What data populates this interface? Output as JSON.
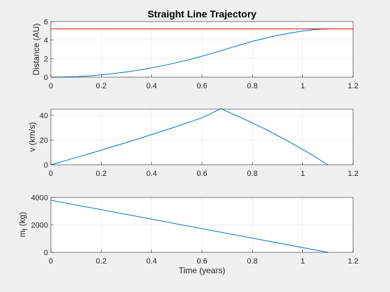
{
  "chart_data": [
    {
      "type": "line",
      "title": "Straight Line Trajectory",
      "xlabel": "",
      "ylabel": "Distance (AU)",
      "xlim": [
        0,
        1.2
      ],
      "ylim": [
        0,
        6
      ],
      "xticks": [
        "0",
        "0.2",
        "0.4",
        "0.6",
        "0.8",
        "1",
        "1.2"
      ],
      "yticks": [
        "0",
        "2",
        "4",
        "6"
      ],
      "grid": true,
      "series": [
        {
          "color": "#0072BD",
          "x": [
            0,
            0.05,
            0.1,
            0.15,
            0.2,
            0.25,
            0.3,
            0.35,
            0.4,
            0.45,
            0.5,
            0.55,
            0.6,
            0.65,
            0.675,
            0.7,
            0.75,
            0.8,
            0.85,
            0.9,
            0.95,
            1.0,
            1.05,
            1.1
          ],
          "y": [
            0,
            0.02,
            0.06,
            0.14,
            0.25,
            0.39,
            0.56,
            0.77,
            1.0,
            1.27,
            1.57,
            1.9,
            2.26,
            2.65,
            2.86,
            3.06,
            3.46,
            3.86,
            4.2,
            4.5,
            4.76,
            4.98,
            5.14,
            5.2
          ]
        },
        {
          "color": "#FF0000",
          "x": [
            0,
            1.2
          ],
          "y": [
            5.2,
            5.2
          ]
        }
      ]
    },
    {
      "type": "line",
      "title": "",
      "xlabel": "",
      "ylabel": "v (km/s)",
      "xlim": [
        0,
        1.2
      ],
      "ylim": [
        0,
        45
      ],
      "xticks": [
        "0",
        "0.2",
        "0.4",
        "0.6",
        "0.8",
        "1",
        "1.2"
      ],
      "yticks": [
        "0",
        "20",
        "40"
      ],
      "grid": true,
      "series": [
        {
          "color": "#0072BD",
          "x": [
            0,
            0.1,
            0.2,
            0.3,
            0.4,
            0.5,
            0.6,
            0.675,
            0.75,
            0.85,
            0.95,
            1.03,
            1.1
          ],
          "y": [
            0,
            5.8,
            11.8,
            18.0,
            24.4,
            31.0,
            38.0,
            45.4,
            38.6,
            29.0,
            18.2,
            8.8,
            0
          ]
        }
      ]
    },
    {
      "type": "line",
      "title": "",
      "xlabel": "Time (years)",
      "ylabel": "m_f (kg)",
      "ylabel_parts": {
        "base": "m",
        "sub": "f",
        "rest": " (kg)"
      },
      "xlim": [
        0,
        1.2
      ],
      "ylim": [
        0,
        4000
      ],
      "xticks": [
        "0",
        "0.2",
        "0.4",
        "0.6",
        "0.8",
        "1",
        "1.2"
      ],
      "yticks": [
        "0",
        "2000",
        "4000"
      ],
      "grid": true,
      "series": [
        {
          "color": "#0072BD",
          "x": [
            0,
            1.1
          ],
          "y": [
            3800,
            0
          ]
        }
      ]
    }
  ]
}
